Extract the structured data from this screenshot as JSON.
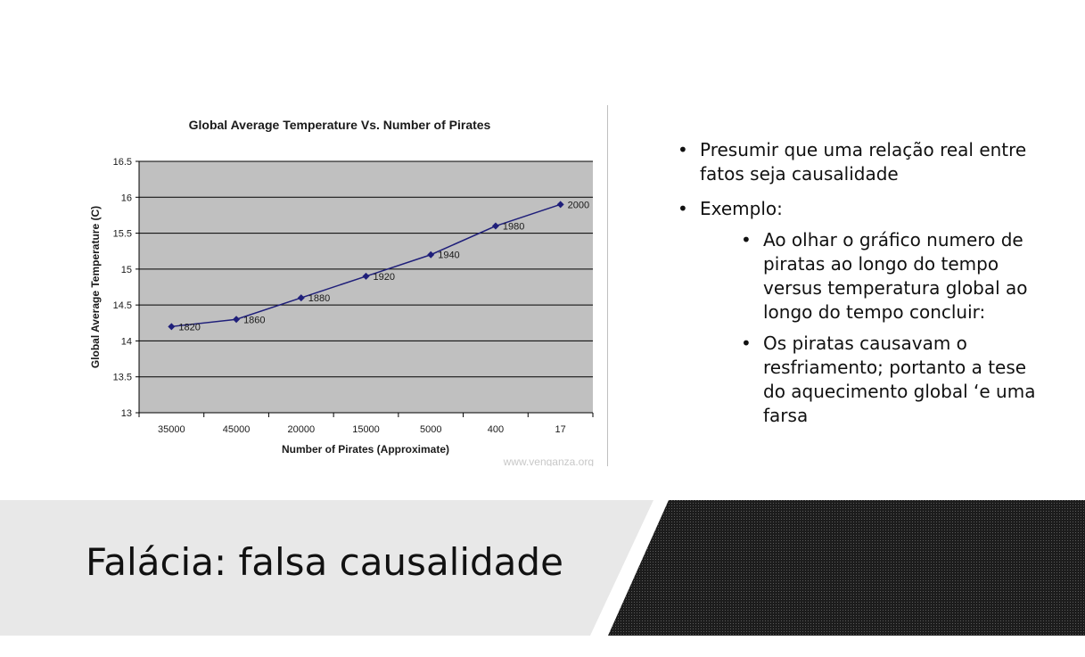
{
  "slide": {
    "title": "Falácia: falsa causalidade",
    "bullets": [
      {
        "text": "Presumir que uma relação real entre fatos seja causalidade",
        "sub": []
      },
      {
        "text": "Exemplo:",
        "sub": [
          "Ao olhar o gráfico numero de piratas ao longo do tempo versus temperatura  global ao longo do tempo concluir:",
          "Os piratas causavam o resfriamento; portanto a tese do aquecimento global ‘e uma farsa"
        ]
      }
    ]
  },
  "chart_data": {
    "type": "line",
    "title": "Global Average Temperature Vs. Number of Pirates",
    "xlabel": "Number of Pirates (Approximate)",
    "ylabel": "Global Average Temperature",
    "ylabel_unit": "(C)",
    "categories": [
      "35000",
      "45000",
      "20000",
      "15000",
      "5000",
      "400",
      "17"
    ],
    "series": [
      {
        "values": [
          14.2,
          14.3,
          14.6,
          14.9,
          15.2,
          15.6,
          15.9
        ],
        "point_labels": [
          "1820",
          "1860",
          "1880",
          "1920",
          "1940",
          "1980",
          "2000"
        ]
      }
    ],
    "ylim": [
      13,
      16.5
    ],
    "yticks": [
      "13",
      "13.5",
      "14",
      "14.5",
      "15",
      "15.5",
      "16",
      "16.5"
    ],
    "grid": true,
    "legend": "none",
    "watermark": "www.venganza.org",
    "colors": {
      "plot_bg": "#c0c0c0",
      "line": "#1f1f7a",
      "grid": "#000000"
    }
  }
}
